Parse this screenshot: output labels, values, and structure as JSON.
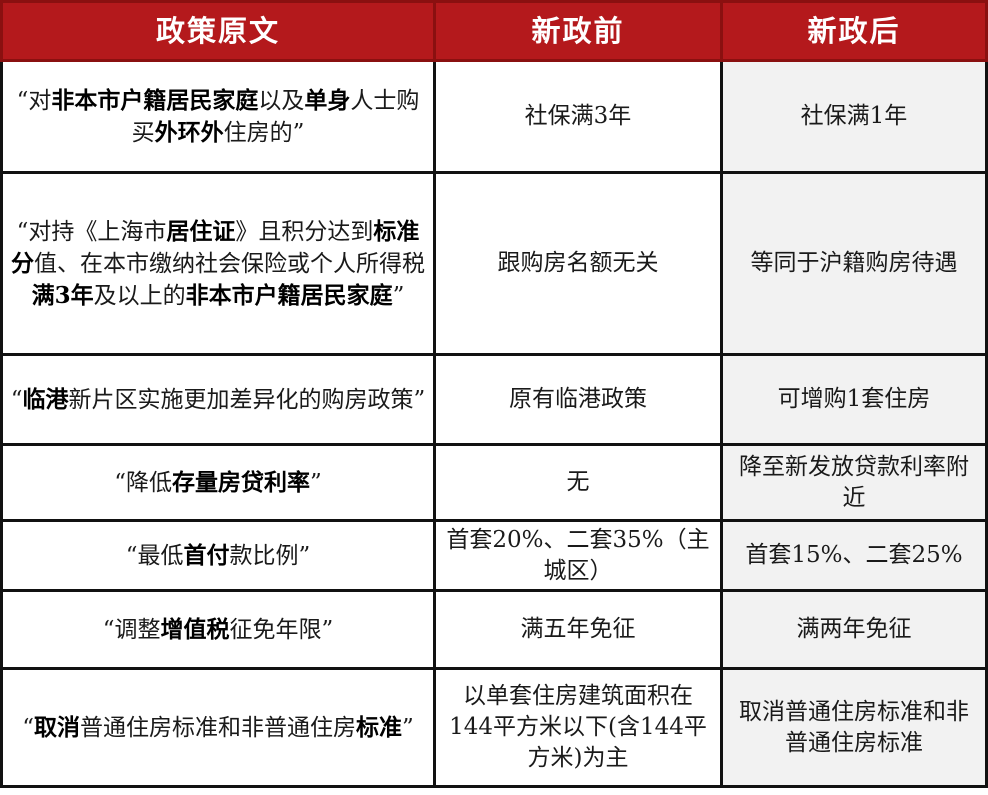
{
  "header": {
    "col1": "政策原文",
    "col2": "新政前",
    "col3": "新政后"
  },
  "rows": [
    {
      "policy": [
        {
          "t": "“对",
          "b": false
        },
        {
          "t": "非本市户籍居民家庭",
          "b": true
        },
        {
          "t": "以及",
          "b": false
        },
        {
          "t": "单身",
          "b": true
        },
        {
          "t": "人士购买",
          "b": false
        },
        {
          "t": "外环外",
          "b": true
        },
        {
          "t": "住房的”",
          "b": false
        }
      ],
      "before": "社保满3年",
      "after": "社保满1年"
    },
    {
      "policy": [
        {
          "t": "“对持《上海市",
          "b": false
        },
        {
          "t": "居住证",
          "b": true
        },
        {
          "t": "》且积分达到",
          "b": false
        },
        {
          "t": "标准分",
          "b": true
        },
        {
          "t": "值、在本市缴纳社会保险或个人所得税",
          "b": false
        },
        {
          "t": "满3年",
          "b": true
        },
        {
          "t": "及以上的",
          "b": false
        },
        {
          "t": "非本市户籍居民家庭",
          "b": true
        },
        {
          "t": "”",
          "b": false
        }
      ],
      "before": "跟购房名额无关",
      "after": "等同于沪籍购房待遇"
    },
    {
      "policy": [
        {
          "t": "“",
          "b": false
        },
        {
          "t": "临港",
          "b": true
        },
        {
          "t": "新片区实施更加差异化的购房政策”",
          "b": false
        }
      ],
      "before": "原有临港政策",
      "after": "可增购1套住房"
    },
    {
      "policy": [
        {
          "t": "“降低",
          "b": false
        },
        {
          "t": "存量房贷利率",
          "b": true
        },
        {
          "t": "”",
          "b": false
        }
      ],
      "before": "无",
      "after": "降至新发放贷款利率附近"
    },
    {
      "policy": [
        {
          "t": "“最低",
          "b": false
        },
        {
          "t": "首付",
          "b": true
        },
        {
          "t": "款比例”",
          "b": false
        }
      ],
      "before": "首套20%、二套35%（主城区）",
      "after": "首套15%、二套25%"
    },
    {
      "policy": [
        {
          "t": "“调整",
          "b": false
        },
        {
          "t": "增值税",
          "b": true
        },
        {
          "t": "征免年限”",
          "b": false
        }
      ],
      "before": "满五年免征",
      "after": "满两年免征"
    },
    {
      "policy": [
        {
          "t": "“",
          "b": false
        },
        {
          "t": "取消",
          "b": true
        },
        {
          "t": "普通住房标准和非普通住房",
          "b": false
        },
        {
          "t": "标准",
          "b": true
        },
        {
          "t": "”",
          "b": false
        }
      ],
      "before": "以单套住房建筑面积在144平方米以下(含144平方米)为主",
      "after": "取消普通住房标准和非普通住房标准"
    }
  ],
  "colors": {
    "header_bg": "#b4191c",
    "after_col_bg": "#f2f2f2"
  }
}
